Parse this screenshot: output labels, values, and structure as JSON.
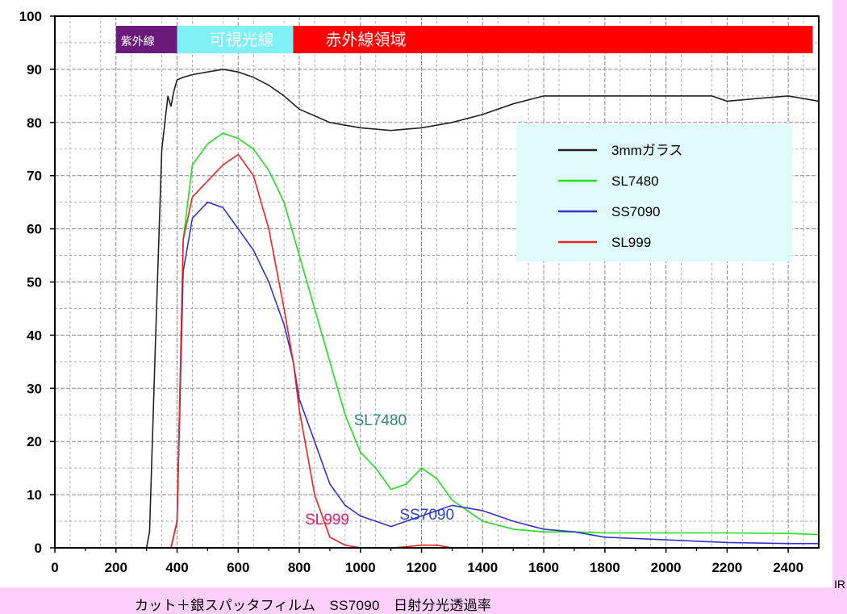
{
  "colors": {
    "page_bg": "#fdd0fb",
    "uv_band": "#6a1a7a",
    "vis_band": "#7ff0f4",
    "ir_band": "#ff0000",
    "legend_bg": "#e0fbfb"
  },
  "chart_data": {
    "type": "line",
    "xlim": [
      0,
      2500
    ],
    "ylim": [
      0,
      100
    ],
    "xticks": [
      "0",
      "200",
      "400",
      "600",
      "800",
      "1000",
      "1200",
      "1400",
      "1600",
      "1800",
      "2000",
      "2200",
      "2400"
    ],
    "yticks": [
      "0",
      "10",
      "20",
      "30",
      "40",
      "50",
      "60",
      "70",
      "80",
      "90",
      "100"
    ],
    "grid": true,
    "legend_position": "upper-right",
    "bands": [
      {
        "label": "紫外線",
        "x_start": 200,
        "x_end": 400,
        "color": "#6a1a7a",
        "text_color": "#ffffff"
      },
      {
        "label": "可視光線",
        "x_start": 400,
        "x_end": 780,
        "color": "#7ff0f4",
        "text_color": "#ffffff"
      },
      {
        "label": "赤外線領域",
        "x_start": 780,
        "x_end": 2480,
        "color": "#ff0000",
        "text_color": "#ffffff"
      }
    ],
    "series": [
      {
        "name": "3mmガラス",
        "color": "#222222",
        "x": [
          200,
          300,
          310,
          330,
          350,
          370,
          380,
          390,
          400,
          420,
          450,
          500,
          550,
          600,
          650,
          700,
          750,
          800,
          900,
          1000,
          1100,
          1200,
          1300,
          1400,
          1500,
          1600,
          1700,
          1800,
          1900,
          2000,
          2100,
          2150,
          2200,
          2300,
          2400,
          2500
        ],
        "y": [
          0,
          0,
          3,
          40,
          75,
          85,
          83,
          86,
          88,
          88.5,
          89,
          89.5,
          90,
          89.5,
          88.5,
          87,
          85,
          82.5,
          80,
          79,
          78.5,
          79,
          80,
          81.5,
          83.5,
          85,
          85,
          85,
          85,
          85,
          85,
          85,
          84,
          84.5,
          85,
          84
        ]
      },
      {
        "name": "SL7480",
        "color": "#22dd22",
        "x": [
          350,
          380,
          400,
          420,
          450,
          500,
          550,
          600,
          650,
          700,
          750,
          800,
          850,
          900,
          950,
          1000,
          1050,
          1100,
          1150,
          1200,
          1250,
          1300,
          1400,
          1500,
          1600,
          1700,
          1800,
          2000,
          2200,
          2400,
          2500
        ],
        "y": [
          0,
          0,
          5,
          58,
          72,
          76,
          78,
          77,
          75,
          71,
          65,
          55,
          45,
          35,
          25,
          18,
          15,
          11,
          12,
          15,
          13,
          9,
          5,
          3.5,
          3,
          3,
          2.8,
          2.8,
          2.8,
          2.7,
          2.5
        ]
      },
      {
        "name": "SS7090",
        "color": "#3333cc",
        "x": [
          350,
          380,
          400,
          420,
          450,
          500,
          550,
          600,
          650,
          700,
          750,
          780,
          800,
          850,
          900,
          950,
          1000,
          1050,
          1100,
          1150,
          1200,
          1300,
          1400,
          1500,
          1600,
          1700,
          1800,
          2000,
          2200,
          2400,
          2500
        ],
        "y": [
          0,
          0,
          5,
          52,
          62,
          65,
          64,
          60,
          56,
          50,
          42,
          35,
          28,
          20,
          12,
          8,
          6,
          5,
          4,
          5,
          6,
          8,
          7,
          5,
          3.5,
          3,
          2,
          1.5,
          1,
          0.8,
          0.8
        ]
      },
      {
        "name": "SL999",
        "color": "#ee2222",
        "x": [
          350,
          380,
          400,
          420,
          450,
          500,
          550,
          600,
          650,
          700,
          750,
          780,
          800,
          850,
          900,
          950,
          1000,
          1050,
          1100,
          1150,
          1200,
          1250,
          1300,
          1400,
          1500,
          2500
        ],
        "y": [
          0,
          0,
          5,
          58,
          66,
          69,
          72,
          74,
          70,
          60,
          45,
          35,
          26,
          10,
          2,
          0.5,
          0,
          0,
          0,
          0.2,
          0.5,
          0.5,
          0,
          0,
          0,
          0
        ]
      }
    ],
    "annotations": [
      {
        "text": "SL7480",
        "x": 1010,
        "y": 24,
        "color": "#2d8a7c"
      },
      {
        "text": "SL999",
        "x": 850,
        "y": 5.3,
        "color": "#e0206a"
      },
      {
        "text": "SS7090",
        "x": 1160,
        "y": 6.2,
        "color": "#3344cc"
      }
    ]
  },
  "axis_unit_label": "IR",
  "caption": "カット＋銀スパッタフィルム　SS7090　日射分光透過率"
}
